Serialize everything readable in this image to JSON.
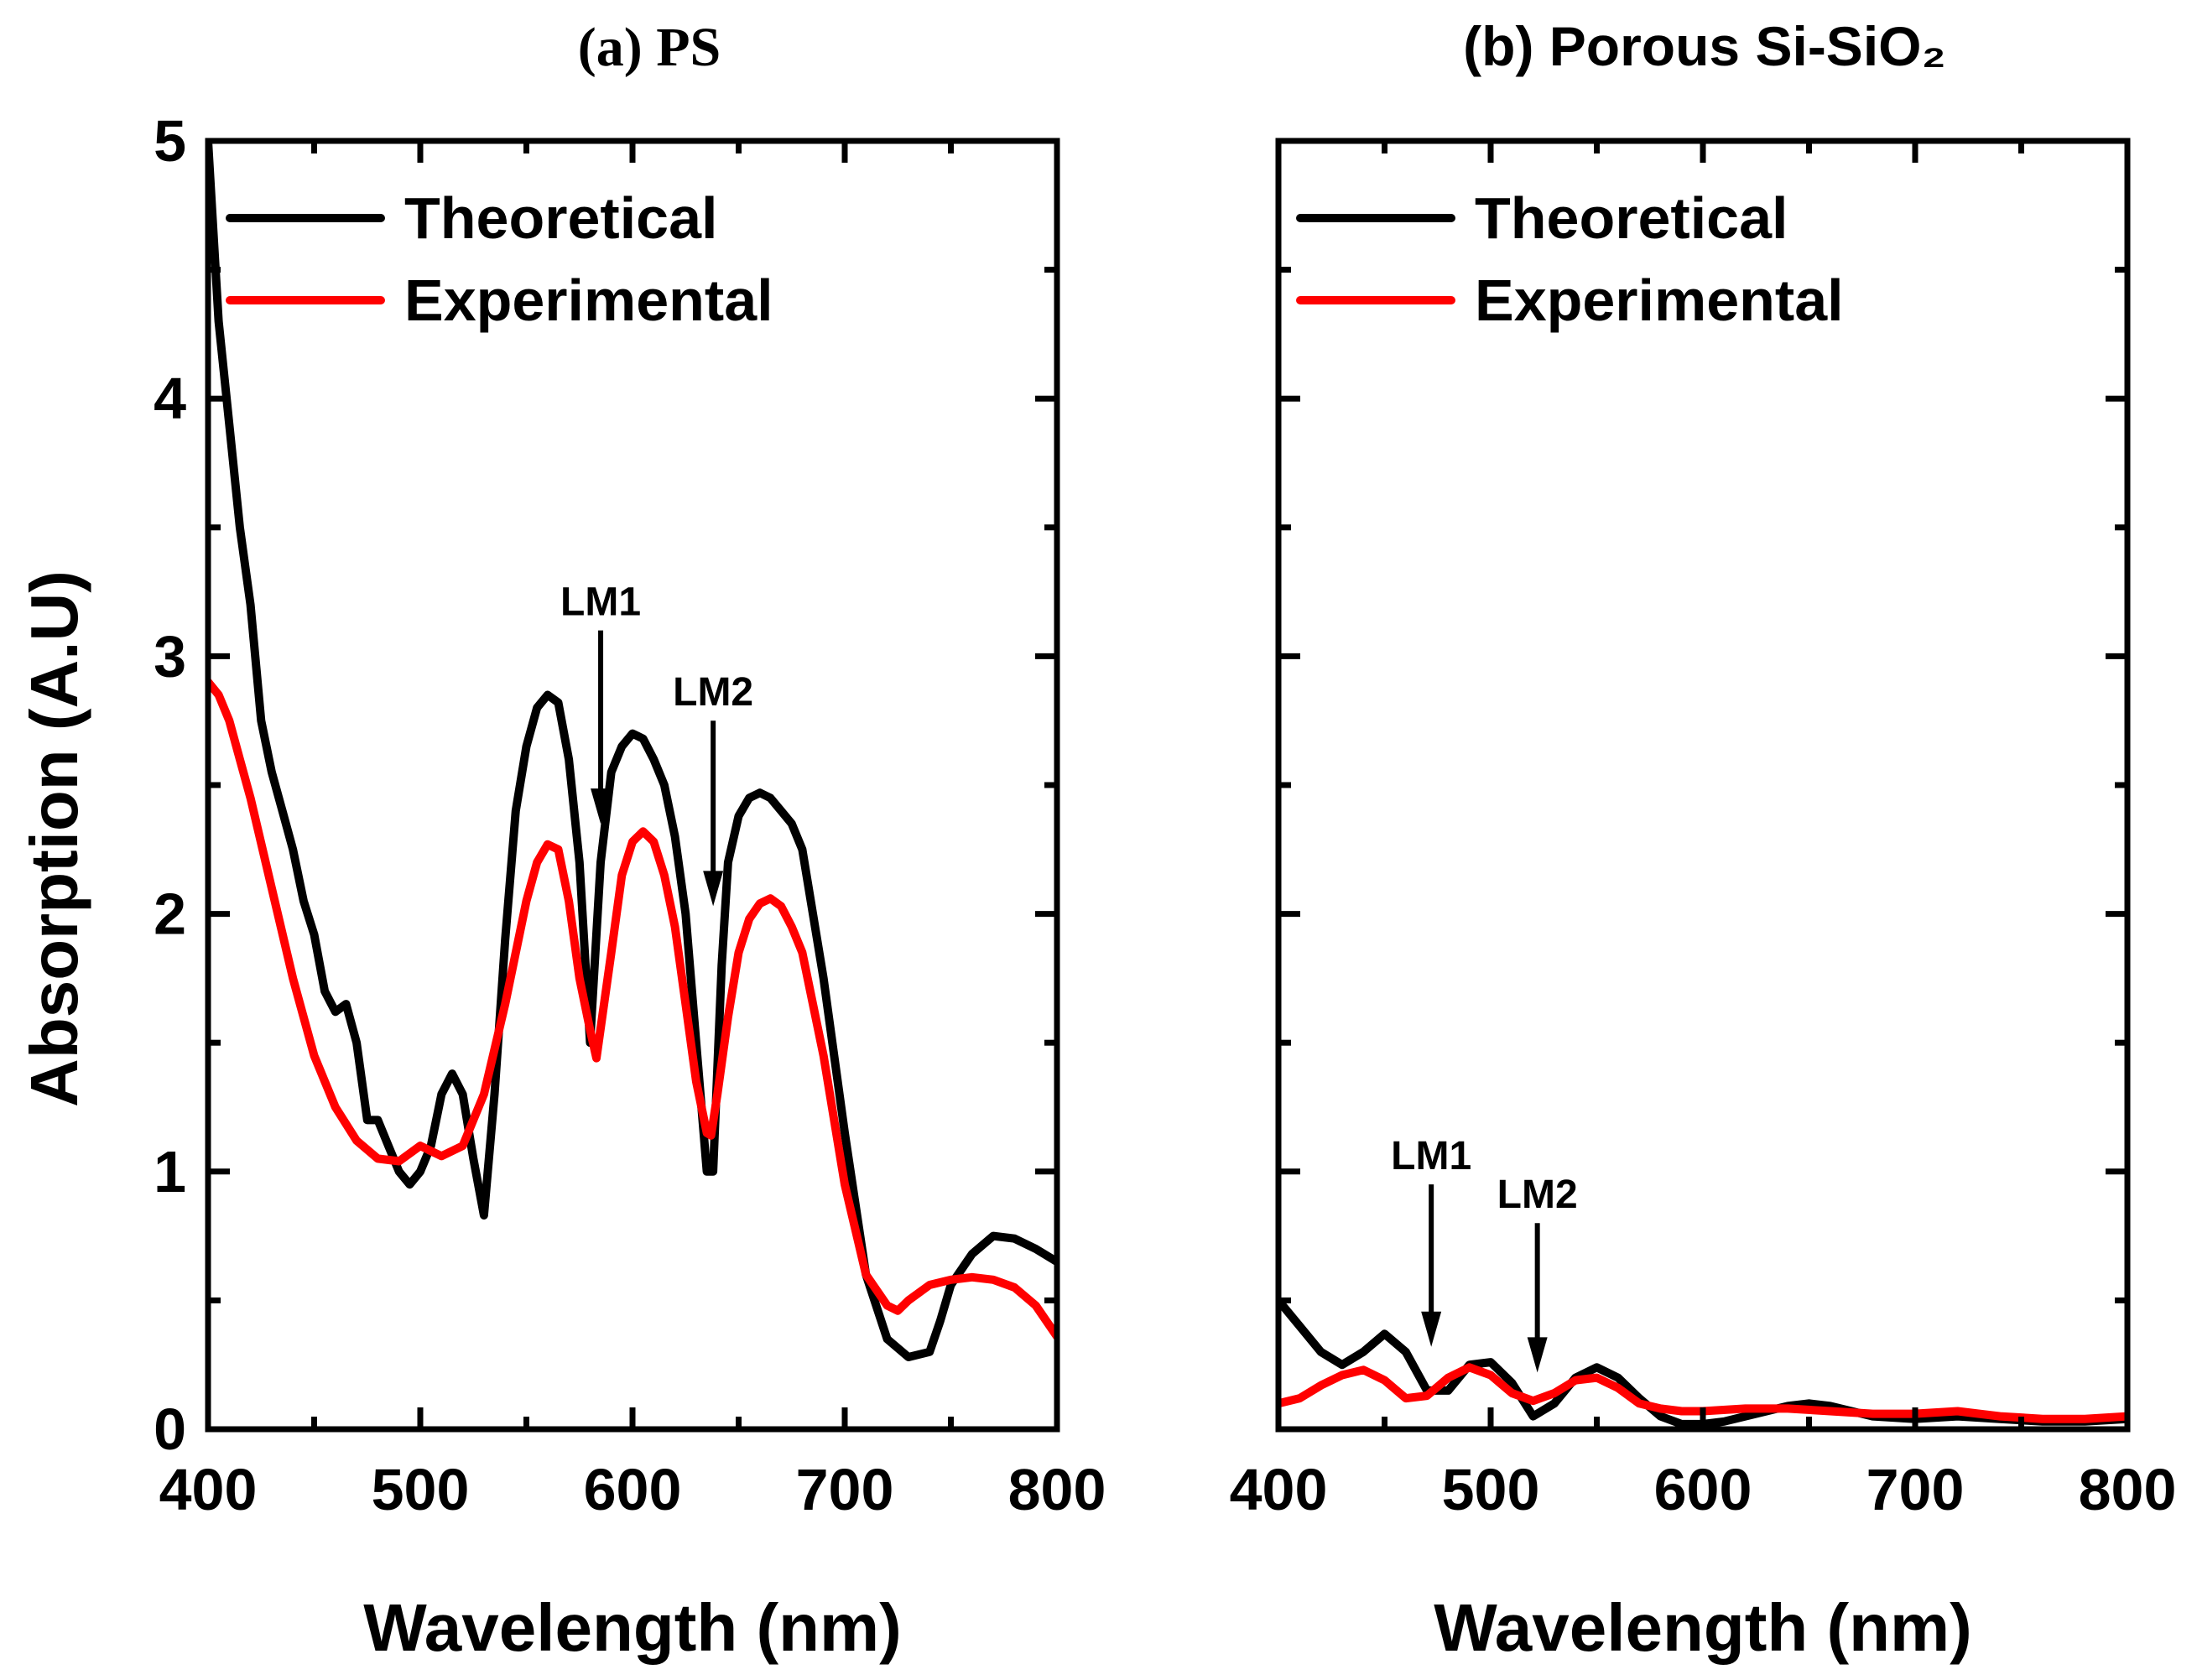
{
  "chart_data": [
    {
      "type": "line",
      "title": "(a) PS",
      "xlabel": "Wavelength (nm)",
      "ylabel": "Absorption (A.U)",
      "xlim": [
        400,
        800
      ],
      "ylim": [
        0,
        5
      ],
      "xticks": [
        400,
        500,
        600,
        700,
        800
      ],
      "yticks": [
        0,
        1,
        2,
        3,
        4,
        5
      ],
      "legend": "top-left",
      "series": [
        {
          "name": "Theoretical",
          "color": "#000000",
          "x": [
            400,
            405,
            410,
            415,
            420,
            425,
            430,
            435,
            440,
            445,
            450,
            455,
            460,
            465,
            470,
            475,
            480,
            485,
            490,
            495,
            500,
            505,
            510,
            515,
            520,
            525,
            530,
            535,
            540,
            545,
            550,
            555,
            560,
            565,
            570,
            575,
            580,
            585,
            590,
            595,
            600,
            605,
            610,
            615,
            620,
            625,
            630,
            635,
            638,
            642,
            645,
            650,
            655,
            660,
            665,
            670,
            675,
            680,
            690,
            700,
            710,
            720,
            730,
            740,
            745,
            750,
            760,
            770,
            780,
            790,
            800
          ],
          "y": [
            5.0,
            4.3,
            3.9,
            3.5,
            3.2,
            2.75,
            2.55,
            2.4,
            2.25,
            2.05,
            1.92,
            1.7,
            1.62,
            1.65,
            1.5,
            1.2,
            1.2,
            1.1,
            1.0,
            0.95,
            1.0,
            1.1,
            1.3,
            1.38,
            1.3,
            1.05,
            0.83,
            1.3,
            1.9,
            2.4,
            2.65,
            2.8,
            2.85,
            2.82,
            2.6,
            2.2,
            1.5,
            2.2,
            2.55,
            2.65,
            2.7,
            2.68,
            2.6,
            2.5,
            2.3,
            2.0,
            1.5,
            1.0,
            1.0,
            1.8,
            2.2,
            2.38,
            2.45,
            2.47,
            2.45,
            2.4,
            2.35,
            2.25,
            1.75,
            1.15,
            0.6,
            0.35,
            0.28,
            0.3,
            0.42,
            0.56,
            0.68,
            0.75,
            0.74,
            0.7,
            0.65
          ]
        },
        {
          "name": "Experimental",
          "color": "#ff0000",
          "x": [
            400,
            405,
            410,
            415,
            420,
            430,
            440,
            450,
            460,
            470,
            480,
            490,
            500,
            510,
            520,
            530,
            540,
            550,
            555,
            560,
            565,
            570,
            575,
            580,
            583,
            590,
            595,
            600,
            605,
            610,
            615,
            620,
            625,
            630,
            635,
            637,
            640,
            645,
            650,
            655,
            660,
            665,
            670,
            675,
            680,
            690,
            700,
            710,
            720,
            725,
            730,
            740,
            750,
            760,
            770,
            780,
            790,
            800
          ],
          "y": [
            2.9,
            2.85,
            2.75,
            2.6,
            2.45,
            2.1,
            1.75,
            1.45,
            1.25,
            1.12,
            1.05,
            1.04,
            1.1,
            1.06,
            1.1,
            1.3,
            1.65,
            2.05,
            2.2,
            2.27,
            2.25,
            2.05,
            1.75,
            1.55,
            1.44,
            1.85,
            2.15,
            2.28,
            2.32,
            2.28,
            2.15,
            1.95,
            1.65,
            1.35,
            1.15,
            1.14,
            1.3,
            1.6,
            1.85,
            1.98,
            2.04,
            2.06,
            2.03,
            1.95,
            1.85,
            1.45,
            0.95,
            0.6,
            0.48,
            0.46,
            0.5,
            0.56,
            0.58,
            0.59,
            0.58,
            0.55,
            0.48,
            0.36
          ]
        }
      ],
      "annotations": [
        {
          "text": "LM1",
          "x": 585,
          "y_from": 3.1,
          "y_to": 2.35
        },
        {
          "text": "LM2",
          "x": 638,
          "y_from": 2.75,
          "y_to": 2.03
        }
      ]
    },
    {
      "type": "line",
      "title": "(b) Porous Si-SiO₂",
      "xlabel": "Wavelength (nm)",
      "ylabel": "",
      "xlim": [
        400,
        800
      ],
      "ylim": [
        0,
        5
      ],
      "xticks": [
        400,
        500,
        600,
        700,
        800
      ],
      "yticks": [
        0,
        1,
        2,
        3,
        4,
        5
      ],
      "legend": "top-left",
      "series": [
        {
          "name": "Theoretical",
          "color": "#000000",
          "x": [
            400,
            410,
            420,
            430,
            440,
            450,
            460,
            470,
            480,
            490,
            500,
            510,
            520,
            530,
            540,
            550,
            560,
            570,
            580,
            590,
            600,
            610,
            620,
            630,
            640,
            650,
            660,
            670,
            680,
            700,
            720,
            740,
            760,
            780,
            800
          ],
          "y": [
            0.5,
            0.4,
            0.3,
            0.25,
            0.3,
            0.37,
            0.3,
            0.15,
            0.15,
            0.25,
            0.26,
            0.18,
            0.05,
            0.1,
            0.2,
            0.24,
            0.2,
            0.12,
            0.05,
            0.02,
            0.02,
            0.03,
            0.05,
            0.07,
            0.09,
            0.1,
            0.09,
            0.07,
            0.05,
            0.04,
            0.05,
            0.04,
            0.03,
            0.03,
            0.04
          ]
        },
        {
          "name": "Experimental",
          "color": "#ff0000",
          "x": [
            400,
            410,
            420,
            430,
            440,
            450,
            460,
            470,
            480,
            490,
            500,
            510,
            520,
            530,
            540,
            550,
            560,
            570,
            580,
            590,
            600,
            620,
            640,
            660,
            680,
            700,
            720,
            740,
            760,
            780,
            800
          ],
          "y": [
            0.1,
            0.12,
            0.17,
            0.21,
            0.23,
            0.19,
            0.12,
            0.13,
            0.2,
            0.24,
            0.21,
            0.14,
            0.11,
            0.14,
            0.19,
            0.2,
            0.16,
            0.1,
            0.08,
            0.07,
            0.07,
            0.08,
            0.08,
            0.07,
            0.06,
            0.06,
            0.07,
            0.05,
            0.04,
            0.04,
            0.05
          ]
        }
      ],
      "annotations": [
        {
          "text": "LM1",
          "x": 472,
          "y_from": 0.95,
          "y_to": 0.32
        },
        {
          "text": "LM2",
          "x": 522,
          "y_from": 0.8,
          "y_to": 0.22
        }
      ]
    }
  ]
}
